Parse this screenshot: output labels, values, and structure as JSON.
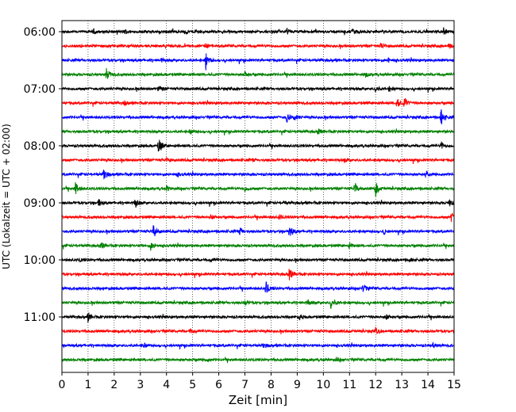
{
  "chart_data": {
    "type": "line",
    "title": "",
    "xlabel": "Zeit  [min]",
    "ylabel": "UTC (Lokalzeit = UTC + 02:00)",
    "xlim": [
      0,
      15
    ],
    "x_ticks": [
      "0",
      "1",
      "2",
      "3",
      "4",
      "5",
      "6",
      "7",
      "8",
      "9",
      "10",
      "11",
      "12",
      "13",
      "14",
      "15"
    ],
    "y_ticks": [
      "06:00",
      "07:00",
      "08:00",
      "09:00",
      "10:00",
      "11:00"
    ],
    "grid": "vertical-dotted",
    "trace_colors": [
      "#000000",
      "#ff0000",
      "#0000ff",
      "#008000"
    ],
    "trace_start_times": [
      "06:00",
      "06:15",
      "06:30",
      "06:45",
      "07:00",
      "07:15",
      "07:30",
      "07:45",
      "08:00",
      "08:15",
      "08:30",
      "08:45",
      "09:00",
      "09:15",
      "09:30",
      "09:45",
      "10:00",
      "10:15",
      "10:30",
      "10:45",
      "11:00",
      "11:15",
      "11:30",
      "11:45"
    ],
    "series": [
      {
        "start": "06:00",
        "color": "#000000",
        "events": [
          {
            "t": 1.2,
            "a": 3
          },
          {
            "t": 2.4,
            "a": 3
          },
          {
            "t": 4.7,
            "a": 3
          },
          {
            "t": 5.1,
            "a": 3
          },
          {
            "t": 8.6,
            "a": 3
          },
          {
            "t": 11.1,
            "a": 3
          },
          {
            "t": 14.6,
            "a": 4
          }
        ]
      },
      {
        "start": "06:15",
        "color": "#ff0000",
        "events": [
          {
            "t": 5.5,
            "a": 3
          },
          {
            "t": 12.2,
            "a": 3
          },
          {
            "t": 14.8,
            "a": 3
          }
        ]
      },
      {
        "start": "06:30",
        "color": "#0000ff",
        "events": [
          {
            "t": 5.5,
            "a": 12
          },
          {
            "t": 3.8,
            "a": 2
          },
          {
            "t": 12.5,
            "a": 3
          }
        ]
      },
      {
        "start": "06:45",
        "color": "#008000",
        "events": [
          {
            "t": 1.7,
            "a": 8
          },
          {
            "t": 7.0,
            "a": 3
          },
          {
            "t": 11.6,
            "a": 3
          }
        ]
      },
      {
        "start": "07:00",
        "color": "#000000",
        "events": [
          {
            "t": 3.7,
            "a": 3
          },
          {
            "t": 12.0,
            "a": 3
          },
          {
            "t": 12.5,
            "a": 3
          }
        ]
      },
      {
        "start": "07:15",
        "color": "#ff0000",
        "events": [
          {
            "t": 12.8,
            "a": 7
          },
          {
            "t": 13.1,
            "a": 7
          },
          {
            "t": 2.4,
            "a": 3
          }
        ]
      },
      {
        "start": "07:30",
        "color": "#0000ff",
        "events": [
          {
            "t": 8.6,
            "a": 7
          },
          {
            "t": 8.9,
            "a": 4
          },
          {
            "t": 14.5,
            "a": 11
          }
        ]
      },
      {
        "start": "07:45",
        "color": "#008000",
        "events": [
          {
            "t": 4.9,
            "a": 3
          },
          {
            "t": 9.8,
            "a": 4
          }
        ]
      },
      {
        "start": "08:00",
        "color": "#000000",
        "events": [
          {
            "t": 3.7,
            "a": 11
          },
          {
            "t": 14.5,
            "a": 5
          }
        ]
      },
      {
        "start": "08:15",
        "color": "#ff0000",
        "events": [
          {
            "t": 4.0,
            "a": 2
          },
          {
            "t": 7.3,
            "a": 2
          },
          {
            "t": 10.8,
            "a": 2
          }
        ]
      },
      {
        "start": "08:30",
        "color": "#0000ff",
        "events": [
          {
            "t": 1.6,
            "a": 8
          },
          {
            "t": 4.4,
            "a": 3
          },
          {
            "t": 13.9,
            "a": 5
          }
        ]
      },
      {
        "start": "08:45",
        "color": "#008000",
        "events": [
          {
            "t": 0.5,
            "a": 9
          },
          {
            "t": 11.2,
            "a": 8
          },
          {
            "t": 12.0,
            "a": 9
          },
          {
            "t": 4.0,
            "a": 3
          },
          {
            "t": 7.0,
            "a": 3
          }
        ]
      },
      {
        "start": "09:00",
        "color": "#000000",
        "events": [
          {
            "t": 1.4,
            "a": 5
          },
          {
            "t": 2.8,
            "a": 7
          },
          {
            "t": 14.8,
            "a": 5
          },
          {
            "t": 8.5,
            "a": 2
          }
        ]
      },
      {
        "start": "09:15",
        "color": "#ff0000",
        "events": [
          {
            "t": 14.9,
            "a": 6
          },
          {
            "t": 5.7,
            "a": 3
          },
          {
            "t": 8.3,
            "a": 3
          }
        ]
      },
      {
        "start": "09:30",
        "color": "#0000ff",
        "events": [
          {
            "t": 3.5,
            "a": 10
          },
          {
            "t": 6.8,
            "a": 6
          },
          {
            "t": 8.7,
            "a": 8
          },
          {
            "t": 12.3,
            "a": 3
          }
        ]
      },
      {
        "start": "09:45",
        "color": "#008000",
        "events": [
          {
            "t": 1.5,
            "a": 5
          },
          {
            "t": 3.4,
            "a": 6
          },
          {
            "t": 11.0,
            "a": 4
          }
        ]
      },
      {
        "start": "10:00",
        "color": "#000000",
        "events": [
          {
            "t": 0.7,
            "a": 2
          },
          {
            "t": 5.7,
            "a": 2
          },
          {
            "t": 13.3,
            "a": 2
          }
        ]
      },
      {
        "start": "10:15",
        "color": "#ff0000",
        "events": [
          {
            "t": 8.7,
            "a": 9
          }
        ]
      },
      {
        "start": "10:30",
        "color": "#0000ff",
        "events": [
          {
            "t": 7.8,
            "a": 9
          },
          {
            "t": 11.5,
            "a": 6
          }
        ]
      },
      {
        "start": "10:45",
        "color": "#008000",
        "events": [
          {
            "t": 9.4,
            "a": 4
          },
          {
            "t": 10.3,
            "a": 10
          },
          {
            "t": 7.0,
            "a": 3
          }
        ]
      },
      {
        "start": "11:00",
        "color": "#000000",
        "events": [
          {
            "t": 1.0,
            "a": 7
          },
          {
            "t": 9.1,
            "a": 3
          },
          {
            "t": 12.4,
            "a": 3
          }
        ]
      },
      {
        "start": "11:15",
        "color": "#ff0000",
        "events": [
          {
            "t": 12.0,
            "a": 4
          },
          {
            "t": 4.9,
            "a": 3
          }
        ]
      },
      {
        "start": "11:30",
        "color": "#0000ff",
        "events": [
          {
            "t": 3.1,
            "a": 3
          },
          {
            "t": 7.7,
            "a": 3
          },
          {
            "t": 14.2,
            "a": 3
          }
        ]
      },
      {
        "start": "11:45",
        "color": "#008000",
        "events": [
          {
            "t": 5.5,
            "a": 2
          },
          {
            "t": 10.5,
            "a": 2
          }
        ]
      }
    ]
  }
}
